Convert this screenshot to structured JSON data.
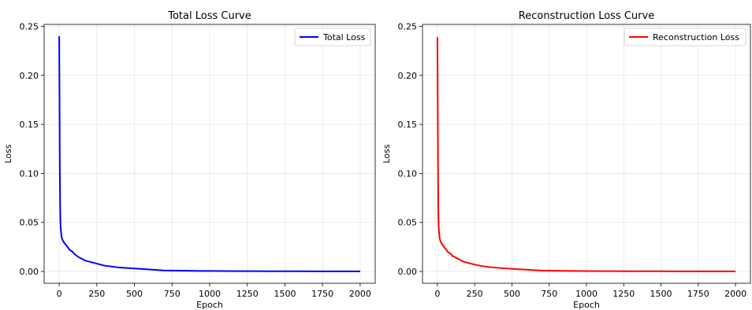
{
  "chart_data": [
    {
      "type": "line",
      "title": "Total Loss Curve",
      "xlabel": "Epoch",
      "ylabel": "Loss",
      "xlim": [
        -100,
        2100
      ],
      "ylim": [
        -0.012,
        0.252
      ],
      "xticks": [
        0,
        250,
        500,
        750,
        1000,
        1250,
        1500,
        1750,
        2000
      ],
      "yticks": [
        0.0,
        0.05,
        0.1,
        0.15,
        0.2,
        0.25
      ],
      "grid": true,
      "legend_position": "top-right",
      "series": [
        {
          "name": "Total Loss",
          "color": "#0000ff",
          "x": [
            0,
            2,
            4,
            6,
            8,
            10,
            15,
            20,
            30,
            40,
            50,
            60,
            70,
            80,
            90,
            100,
            125,
            150,
            175,
            200,
            250,
            300,
            350,
            400,
            450,
            500,
            550,
            600,
            650,
            700,
            800,
            900,
            1000,
            1100,
            1200,
            1300,
            1400,
            1500,
            1600,
            1700,
            1800,
            1900,
            2000
          ],
          "y": [
            0.24,
            0.18,
            0.11,
            0.07,
            0.052,
            0.045,
            0.036,
            0.033,
            0.03,
            0.028,
            0.026,
            0.024,
            0.022,
            0.021,
            0.02,
            0.018,
            0.015,
            0.013,
            0.011,
            0.01,
            0.008,
            0.006,
            0.005,
            0.004,
            0.0035,
            0.003,
            0.0025,
            0.002,
            0.0015,
            0.001,
            0.0008,
            0.0006,
            0.0005,
            0.0004,
            0.0003,
            0.0003,
            0.0002,
            0.0002,
            0.0002,
            0.0001,
            0.0001,
            0.0001,
            0.0001
          ]
        }
      ]
    },
    {
      "type": "line",
      "title": "Reconstruction Loss Curve",
      "xlabel": "Epoch",
      "ylabel": "Loss",
      "xlim": [
        -100,
        2100
      ],
      "ylim": [
        -0.012,
        0.252
      ],
      "xticks": [
        0,
        250,
        500,
        750,
        1000,
        1250,
        1500,
        1750,
        2000
      ],
      "yticks": [
        0.0,
        0.05,
        0.1,
        0.15,
        0.2,
        0.25
      ],
      "grid": true,
      "legend_position": "top-right",
      "series": [
        {
          "name": "Reconstruction Loss",
          "color": "#ff0000",
          "x": [
            0,
            2,
            4,
            6,
            8,
            10,
            15,
            20,
            30,
            40,
            50,
            60,
            70,
            80,
            90,
            100,
            125,
            150,
            175,
            200,
            250,
            300,
            350,
            400,
            450,
            500,
            550,
            600,
            650,
            700,
            800,
            900,
            1000,
            1100,
            1200,
            1300,
            1400,
            1500,
            1600,
            1700,
            1800,
            1900,
            2000
          ],
          "y": [
            0.239,
            0.175,
            0.105,
            0.065,
            0.048,
            0.042,
            0.034,
            0.031,
            0.028,
            0.026,
            0.024,
            0.022,
            0.02,
            0.019,
            0.018,
            0.016,
            0.014,
            0.012,
            0.01,
            0.009,
            0.007,
            0.0055,
            0.0045,
            0.0038,
            0.0032,
            0.0027,
            0.0022,
            0.0018,
            0.0013,
            0.0009,
            0.0007,
            0.0005,
            0.0004,
            0.0003,
            0.0003,
            0.0002,
            0.0002,
            0.0002,
            0.0001,
            0.0001,
            0.0001,
            0.0001,
            0.0001
          ]
        }
      ]
    }
  ]
}
